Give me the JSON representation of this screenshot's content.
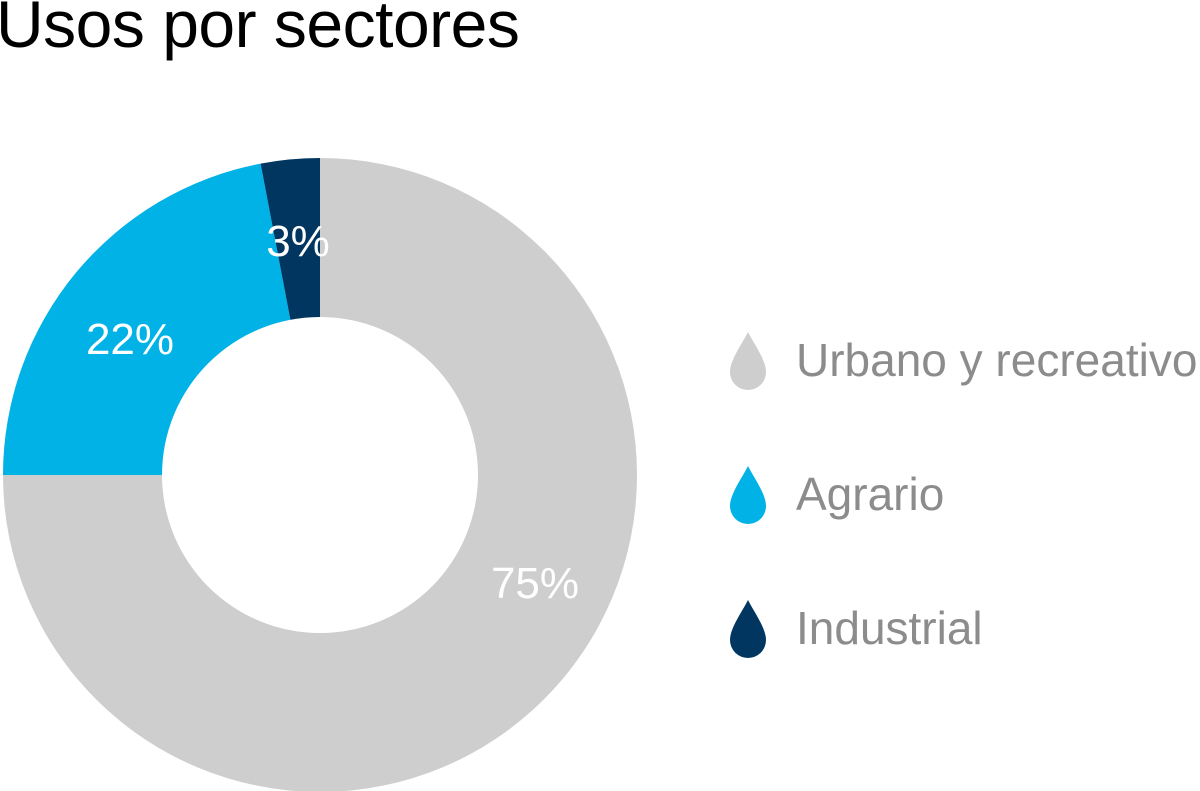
{
  "title": "Usos por sectores",
  "chart_data": {
    "type": "pie",
    "subtype": "donut",
    "title": "Usos por sectores",
    "categories": [
      "Urbano y recreativo",
      "Agrario",
      "Industrial"
    ],
    "values": [
      75,
      22,
      3
    ],
    "labels": [
      "75%",
      "22%",
      "3%"
    ],
    "colors": [
      "#cecece",
      "#00b2e6",
      "#003660"
    ],
    "legend_position": "right",
    "unit": "%"
  },
  "legend": {
    "items": [
      {
        "label": "Urbano y recreativo",
        "color": "#cecece"
      },
      {
        "label": "Agrario",
        "color": "#00b2e6"
      },
      {
        "label": "Industrial",
        "color": "#003660"
      }
    ]
  },
  "slice_labels": {
    "urbano": "75%",
    "agrario": "22%",
    "industrial": "3%"
  }
}
